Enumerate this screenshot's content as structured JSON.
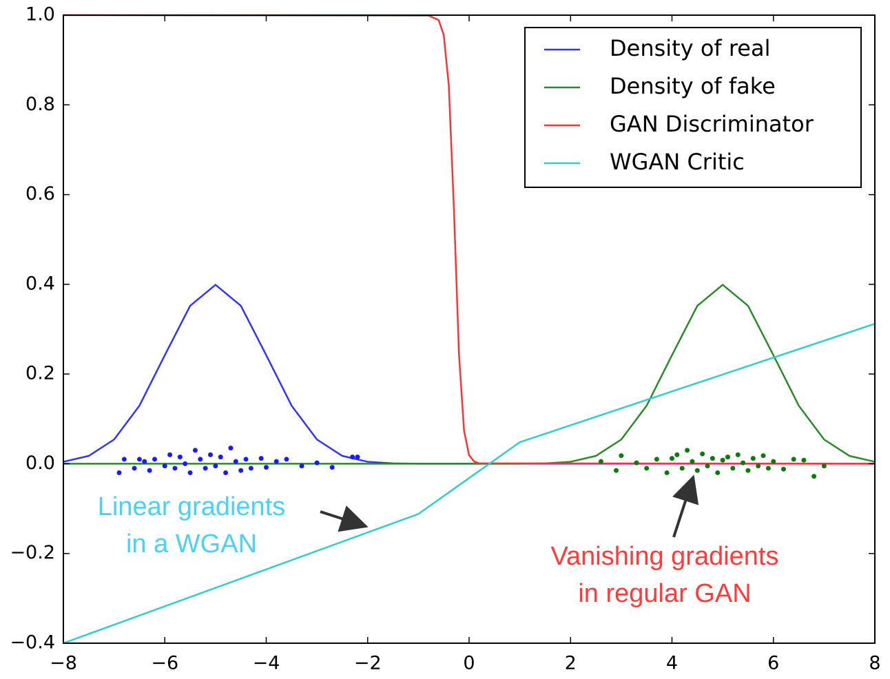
{
  "chart_data": {
    "type": "line",
    "xlim": [
      -8,
      8
    ],
    "ylim": [
      -0.4,
      1.0
    ],
    "xticks": [
      {
        "value": -8,
        "label": "−8"
      },
      {
        "value": -6,
        "label": "−6"
      },
      {
        "value": -4,
        "label": "−4"
      },
      {
        "value": -2,
        "label": "−2"
      },
      0,
      2,
      4,
      6,
      8
    ],
    "yticks": [
      {
        "value": -0.4,
        "label": "−0.4"
      },
      {
        "value": -0.2,
        "label": "−0.2"
      },
      {
        "value": 0,
        "label": "0.0"
      },
      0.2,
      0.4,
      0.6,
      0.8,
      {
        "value": 1,
        "label": "1.0"
      }
    ],
    "legend": "upper right",
    "series": [
      {
        "name": "Density of real",
        "color": "#3333ff",
        "x": [
          -8,
          -7.5,
          -7,
          -6.5,
          -6,
          -5.5,
          -5,
          -4.5,
          -4,
          -3.5,
          -3,
          -2.5,
          -2,
          -1.5,
          -1,
          -0.5,
          0,
          0.5,
          1,
          1.5,
          2,
          2.5,
          3,
          3.5,
          4,
          4.5,
          5,
          5.5,
          6,
          6.5,
          7,
          7.5,
          8
        ],
        "values": [
          0.0044,
          0.0175,
          0.054,
          0.1295,
          0.242,
          0.3521,
          0.3989,
          0.3521,
          0.242,
          0.1295,
          0.054,
          0.0175,
          0.0044,
          0.0009,
          0.0001,
          0,
          0,
          0,
          0,
          0,
          0,
          0,
          0,
          0,
          0,
          0,
          0,
          0,
          0,
          0,
          0,
          0,
          0
        ]
      },
      {
        "name": "Density of fake",
        "color": "#2a8a2a",
        "x": [
          -8,
          -7.5,
          -7,
          -6.5,
          -6,
          -5.5,
          -5,
          -4.5,
          -4,
          -3.5,
          -3,
          -2.5,
          -2,
          -1.5,
          -1,
          -0.5,
          0,
          0.5,
          1,
          1.5,
          2,
          2.5,
          3,
          3.5,
          4,
          4.5,
          5,
          5.5,
          6,
          6.5,
          7,
          7.5,
          8
        ],
        "values": [
          0,
          0,
          0,
          0,
          0,
          0,
          0,
          0,
          0,
          0,
          0,
          0,
          0,
          0,
          0,
          0,
          0,
          0,
          0.0001,
          0.0009,
          0.0044,
          0.0175,
          0.054,
          0.1295,
          0.242,
          0.3521,
          0.3989,
          0.3521,
          0.242,
          0.1295,
          0.054,
          0.0175,
          0.0044
        ]
      },
      {
        "name": "GAN Discriminator",
        "color": "#ff3333",
        "x": [
          -8,
          -0.8,
          -0.6,
          -0.5,
          -0.4,
          -0.3,
          -0.2,
          -0.1,
          0,
          0.1,
          0.2,
          8
        ],
        "values": [
          1,
          0.999,
          0.989,
          0.956,
          0.843,
          0.57,
          0.246,
          0.074,
          0.019,
          0.005,
          0.001,
          0
        ]
      },
      {
        "name": "WGAN Critic",
        "color": "#33cccc",
        "x": [
          -8,
          -1,
          1,
          8
        ],
        "values": [
          -0.4,
          -0.112,
          0.048,
          0.312
        ]
      },
      {
        "style": "points",
        "color": "#1a1aff",
        "x": [
          -6.9,
          -6.8,
          -6.6,
          -6.5,
          -6.4,
          -6.3,
          -6.2,
          -6.0,
          -5.9,
          -5.8,
          -5.7,
          -5.6,
          -5.5,
          -5.4,
          -5.3,
          -5.2,
          -5.1,
          -5.0,
          -4.9,
          -4.8,
          -4.7,
          -4.6,
          -4.5,
          -4.4,
          -4.3,
          -4.1,
          -4.0,
          -3.8,
          -3.6,
          -3.3,
          -3.0,
          -2.7,
          -2.3,
          -2.2
        ],
        "values": [
          -0.02,
          0.01,
          -0.01,
          0.01,
          0.005,
          -0.015,
          0.01,
          -0.005,
          0.02,
          -0.01,
          0.015,
          0,
          -0.02,
          0.03,
          0.01,
          -0.01,
          0.02,
          -0.005,
          0.015,
          -0.02,
          0.035,
          0.005,
          -0.015,
          0.01,
          -0.01,
          0.012,
          -0.008,
          0.005,
          0.01,
          -0.005,
          0.002,
          -0.008,
          0.015,
          0.015
        ]
      },
      {
        "style": "points",
        "color": "#0a7a0a",
        "x": [
          2.6,
          2.9,
          3.0,
          3.3,
          3.5,
          3.7,
          3.9,
          4.0,
          4.1,
          4.2,
          4.3,
          4.4,
          4.5,
          4.6,
          4.7,
          4.8,
          4.9,
          5.0,
          5.1,
          5.2,
          5.3,
          5.4,
          5.5,
          5.6,
          5.7,
          5.8,
          5.9,
          6.0,
          6.2,
          6.4,
          6.6,
          6.8,
          7.0
        ],
        "values": [
          0.005,
          -0.015,
          0.018,
          0.002,
          -0.01,
          0.01,
          -0.02,
          0.012,
          0.02,
          -0.01,
          0.03,
          0.005,
          -0.015,
          0.022,
          -0.005,
          0.012,
          -0.02,
          0.008,
          0.015,
          -0.01,
          0.02,
          0.002,
          -0.015,
          0.012,
          -0.005,
          0.018,
          -0.01,
          0.005,
          -0.012,
          0.01,
          0.008,
          -0.028,
          -0.005
        ]
      }
    ],
    "annotations": [
      {
        "lines": [
          "Linear gradients",
          "in a WGAN"
        ],
        "color": "#4dd0f5"
      },
      {
        "lines": [
          "Vanishing gradients",
          "in regular GAN"
        ],
        "color": "#ff3b3b"
      }
    ]
  }
}
